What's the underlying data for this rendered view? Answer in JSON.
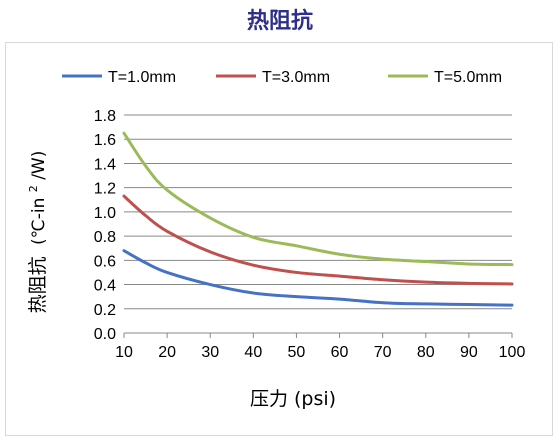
{
  "chart_data": {
    "type": "line",
    "title": "热阻抗",
    "xlabel": "压力 (psi)",
    "ylabel_main": "热阻抗",
    "ylabel_unit": "(℃-in",
    "ylabel_sup": "2",
    "ylabel_tail": "/W)",
    "xlim": [
      10,
      100
    ],
    "ylim": [
      0,
      1.8
    ],
    "x_ticks": [
      "10",
      "20",
      "30",
      "40",
      "50",
      "60",
      "70",
      "80",
      "90",
      "100"
    ],
    "y_ticks": [
      "0.0",
      "0.2",
      "0.4",
      "0.6",
      "0.8",
      "1.0",
      "1.2",
      "1.4",
      "1.6",
      "1.8"
    ],
    "grid": "horizontal",
    "legend_position": "top",
    "x": [
      10,
      15,
      20,
      30,
      40,
      50,
      60,
      70,
      80,
      90,
      100
    ],
    "series": [
      {
        "name": "T=1.0mm",
        "color": "#4472c4",
        "values": [
          0.68,
          0.58,
          0.5,
          0.4,
          0.33,
          0.3,
          0.28,
          0.25,
          0.24,
          0.235,
          0.23
        ]
      },
      {
        "name": "T=3.0mm",
        "color": "#c0504d",
        "values": [
          1.13,
          0.97,
          0.84,
          0.67,
          0.56,
          0.5,
          0.47,
          0.44,
          0.42,
          0.41,
          0.405
        ]
      },
      {
        "name": "T=5.0mm",
        "color": "#9bbb59",
        "values": [
          1.65,
          1.38,
          1.18,
          0.95,
          0.79,
          0.72,
          0.65,
          0.61,
          0.59,
          0.57,
          0.565
        ]
      }
    ]
  }
}
